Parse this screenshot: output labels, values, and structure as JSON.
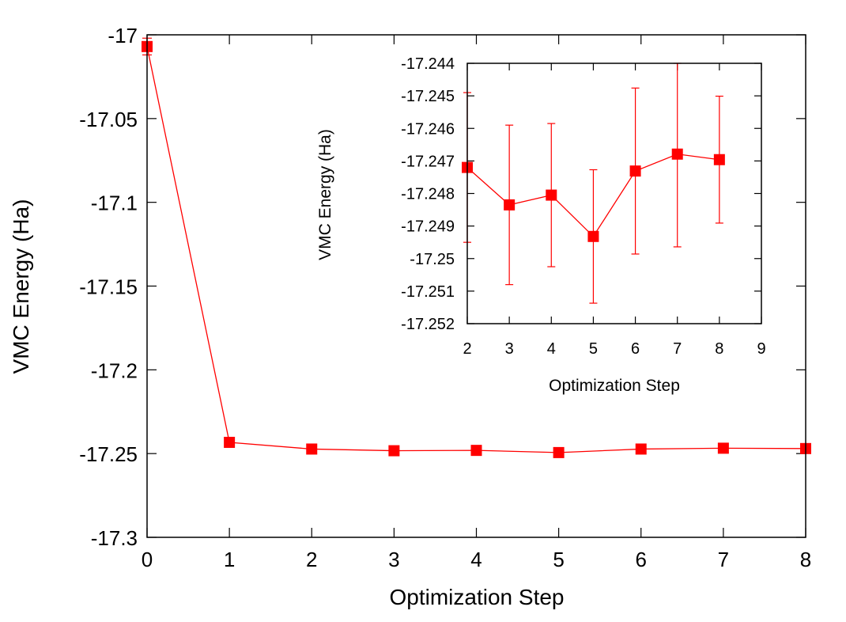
{
  "colors": {
    "series": "#ff0000",
    "axis": "#000000",
    "background": "#ffffff"
  },
  "chart_data": [
    {
      "type": "line",
      "name": "main",
      "xlabel": "Optimization Step",
      "ylabel": "VMC Energy (Ha)",
      "xlim": [
        0,
        8
      ],
      "ylim": [
        -17.3,
        -17.0
      ],
      "xticks": [
        0,
        1,
        2,
        3,
        4,
        5,
        6,
        7,
        8
      ],
      "xtick_labels": [
        "0",
        "1",
        "2",
        "3",
        "4",
        "5",
        "6",
        "7",
        "8"
      ],
      "yticks": [
        -17.0,
        -17.05,
        -17.1,
        -17.15,
        -17.2,
        -17.25,
        -17.3
      ],
      "ytick_labels": [
        "-17",
        "-17.05",
        "-17.1",
        "-17.15",
        "-17.2",
        "-17.25",
        "-17.3"
      ],
      "marker": "square",
      "x": [
        0,
        1,
        2,
        3,
        4,
        5,
        6,
        7,
        8
      ],
      "y": [
        -17.007,
        -17.2433,
        -17.2473,
        -17.2483,
        -17.2481,
        -17.2494,
        -17.2473,
        -17.2468,
        -17.247
      ],
      "yerr": [
        0.005,
        0.001,
        0.0012,
        0.0012,
        0.0012,
        0.0012,
        0.0012,
        0.0012,
        0.0012
      ]
    },
    {
      "type": "line",
      "name": "inset",
      "xlabel": "Optimization Step",
      "ylabel": "VMC Energy (Ha)",
      "xlim": [
        2,
        9
      ],
      "ylim": [
        -17.252,
        -17.244
      ],
      "xticks": [
        2,
        3,
        4,
        5,
        6,
        7,
        8,
        9
      ],
      "xtick_labels": [
        "2",
        "3",
        "4",
        "5",
        "6",
        "7",
        "8",
        "9"
      ],
      "yticks": [
        -17.244,
        -17.245,
        -17.246,
        -17.247,
        -17.248,
        -17.249,
        -17.25,
        -17.251,
        -17.252
      ],
      "ytick_labels": [
        "-17.244",
        "-17.245",
        "-17.246",
        "-17.247",
        "-17.248",
        "-17.249",
        "-17.25",
        "-17.251",
        "-17.252"
      ],
      "marker": "square",
      "x": [
        2,
        3,
        4,
        5,
        6,
        7,
        8
      ],
      "y": [
        -17.2472,
        -17.24835,
        -17.24805,
        -17.24932,
        -17.24731,
        -17.24679,
        -17.24696
      ],
      "yerr": [
        0.0023,
        0.00245,
        0.0022,
        0.00205,
        0.00255,
        0.00285,
        0.00195
      ]
    }
  ]
}
